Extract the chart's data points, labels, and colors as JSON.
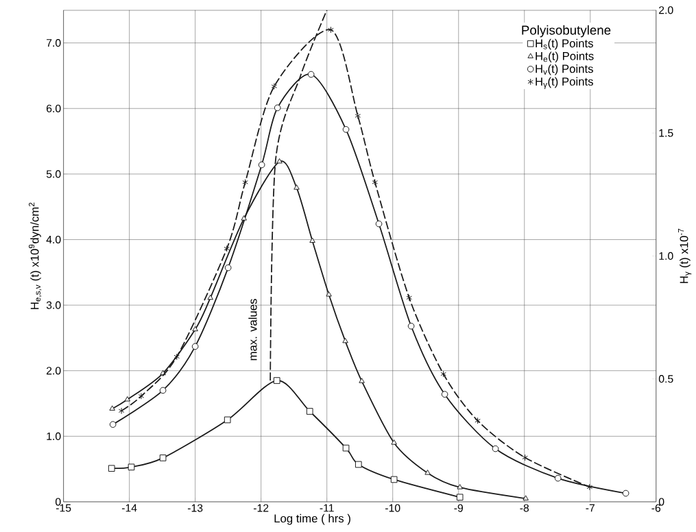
{
  "chart_data": {
    "type": "line",
    "xlabel": "Log time ( hrs )",
    "ylabel": "H$_{e,s,v}$ (t) x10$^{9}$dyn/cm$^{2}$",
    "y2label": "H$_{γ}$ (t) x10$^{-7}$",
    "legend_title": "Polyisobutylene",
    "xlim": [
      -15,
      -6
    ],
    "xticks": [
      -15,
      -14,
      -13,
      -12,
      -11,
      -10,
      -9,
      -8,
      -7,
      -6
    ],
    "ylim": [
      0,
      7.5
    ],
    "yticks": [
      0,
      {
        "value": 1,
        "label": "1.0"
      },
      {
        "value": 2,
        "label": "2.0"
      },
      {
        "value": 3,
        "label": "3.0"
      },
      {
        "value": 4,
        "label": "4.0"
      },
      {
        "value": 5,
        "label": "5.0"
      },
      {
        "value": 6,
        "label": "6.0"
      },
      {
        "value": 7,
        "label": "7.0"
      }
    ],
    "y2lim": [
      0,
      2.0
    ],
    "y2ticks": [
      0,
      0.5,
      {
        "value": 1,
        "label": "1.0"
      },
      1.5,
      {
        "value": 2,
        "label": "2.0"
      }
    ],
    "grid": true,
    "legend": "top right",
    "line_style": "solid",
    "series": [
      {
        "name": "H$_{s}$(t) Points",
        "color": "#1a1a1a",
        "marker": "square",
        "x": [
          -14.27,
          -13.97,
          -13.49,
          -12.51,
          -11.76,
          -11.26,
          -10.71,
          -10.52,
          -9.98,
          -8.98
        ],
        "values": [
          0.51,
          0.53,
          0.67,
          1.25,
          1.85,
          1.38,
          0.82,
          0.57,
          0.34,
          0.07
        ]
      },
      {
        "name": "H$_{e}$(t) Points",
        "color": "#1a1a1a",
        "marker": "triangle",
        "x": [
          -14.26,
          -14.03,
          -13.49,
          -13.0,
          -12.77,
          -12.26,
          -11.72,
          -11.46,
          -11.22,
          -10.97,
          -10.72,
          -10.47,
          -9.98,
          -9.47,
          -8.98,
          -7.98
        ],
        "values": [
          1.42,
          1.56,
          1.96,
          2.63,
          3.11,
          4.32,
          5.19,
          4.79,
          3.98,
          3.16,
          2.45,
          1.84,
          0.9,
          0.44,
          0.22,
          0.05
        ]
      },
      {
        "name": "H$_{v}$(t) Points",
        "color": "#1a1a1a",
        "marker": "circle",
        "x": [
          -14.25,
          -13.49,
          -13.0,
          -12.5,
          -11.99,
          -11.75,
          -11.24,
          -10.71,
          -10.21,
          -9.72,
          -9.21,
          -8.44,
          -7.49,
          -6.46
        ],
        "values": [
          1.18,
          1.7,
          2.37,
          3.57,
          5.14,
          6.01,
          6.52,
          5.68,
          4.24,
          2.68,
          1.64,
          0.81,
          0.36,
          0.13
        ]
      },
      {
        "name": "H$_{γ}$(t) Points",
        "color": "#1a1a1a",
        "marker": "cross",
        "axis": "y2",
        "line_style": "dashed",
        "x": [
          -14.12,
          -13.82,
          -13.28,
          -12.52,
          -12.24,
          -11.8,
          -10.94,
          -10.53,
          -10.27,
          -9.75,
          -9.23,
          -8.71,
          -7.99,
          -7.01
        ],
        "values": [
          0.37,
          0.43,
          0.59,
          1.03,
          1.3,
          1.69,
          1.92,
          1.57,
          1.3,
          0.83,
          0.52,
          0.33,
          0.18,
          0.06
        ]
      },
      {
        "color": "#1a1a1a",
        "marker": "none",
        "line_style": "dashed",
        "x": [
          -11.86,
          -11.78,
          -11.4,
          -11.0
        ],
        "values": [
          1.85,
          5.2,
          6.5,
          7.5
        ]
      }
    ],
    "annotations": [
      "max. values"
    ]
  }
}
